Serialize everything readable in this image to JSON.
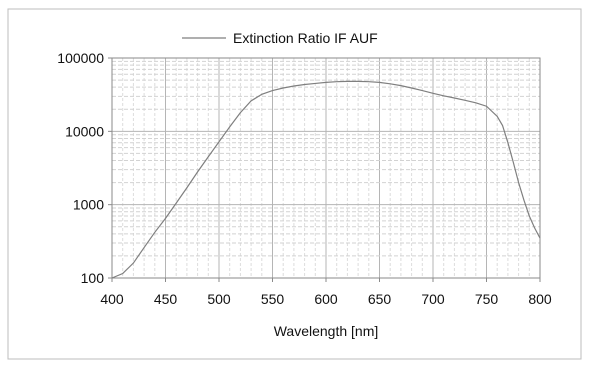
{
  "chart_data": {
    "type": "line",
    "title": "",
    "xlabel": "Wavelength [nm]",
    "ylabel": "",
    "xlim": [
      400,
      800
    ],
    "ylim": [
      100,
      100000
    ],
    "y_scale": "log",
    "grid": true,
    "legend_position": "top-center",
    "x_ticks": [
      "400",
      "450",
      "500",
      "550",
      "600",
      "650",
      "700",
      "750",
      "800"
    ],
    "y_ticks": [
      "100",
      "1000",
      "10000",
      "100000"
    ],
    "series": [
      {
        "name": "Extinction Ratio IF AUF",
        "color": "#7f7f7f",
        "x": [
          400,
          410,
          420,
          430,
          440,
          450,
          460,
          470,
          480,
          490,
          500,
          510,
          520,
          530,
          540,
          550,
          560,
          570,
          580,
          590,
          600,
          610,
          620,
          630,
          640,
          650,
          660,
          670,
          680,
          690,
          700,
          710,
          720,
          730,
          740,
          750,
          760,
          765,
          770,
          775,
          780,
          785,
          790,
          795,
          800
        ],
        "y": [
          100,
          115,
          160,
          260,
          420,
          650,
          1050,
          1700,
          2800,
          4500,
          7200,
          11500,
          18000,
          26000,
          32000,
          36000,
          39000,
          41500,
          43500,
          45000,
          46500,
          47500,
          48000,
          48000,
          47500,
          46500,
          44500,
          42000,
          39000,
          36000,
          33000,
          30500,
          28500,
          26500,
          24500,
          22000,
          16000,
          12000,
          7000,
          3800,
          2000,
          1150,
          700,
          480,
          350
        ]
      }
    ]
  }
}
